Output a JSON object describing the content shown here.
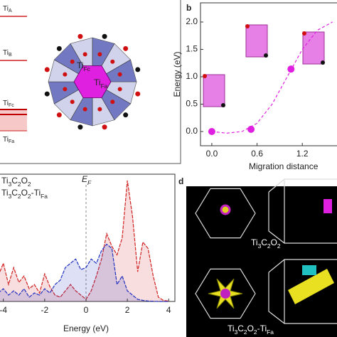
{
  "chart_data": [
    {
      "type": "scatter",
      "panel_label": "b",
      "ylabel": "Energy (eV)",
      "xlabel": "Migration distance",
      "x": [
        0,
        0.52,
        1.05
      ],
      "values": [
        0,
        0.04,
        1.14
      ],
      "color": "#e020e0",
      "curve": {
        "x": [
          0,
          0.2,
          0.4,
          0.6,
          0.8,
          1.0,
          1.2,
          1.4,
          1.6
        ],
        "values": [
          0,
          -0.03,
          0,
          0.15,
          0.5,
          1.0,
          1.5,
          1.85,
          2.0
        ],
        "color": "#e020e0"
      },
      "xlim": [
        -0.15,
        1.66
      ],
      "ylim": [
        -0.26,
        2.35
      ],
      "xticks": [
        {
          "value": 0,
          "label": "0.0"
        },
        {
          "value": 0.6,
          "label": "0.6"
        },
        {
          "value": 1.2,
          "label": "1.2"
        }
      ],
      "yticks": [
        {
          "value": 0,
          "label": "0.0"
        },
        {
          "value": 0.5,
          "label": "0.5"
        },
        {
          "value": 1,
          "label": "1.0"
        },
        {
          "value": 1.5,
          "label": "1.5"
        },
        {
          "value": 2,
          "label": "2.0"
        }
      ]
    },
    {
      "type": "line",
      "xlabel": "Energy (eV)",
      "annotation": [
        "E",
        "F"
      ],
      "x": [
        -4.25,
        -4,
        -3.75,
        -3.5,
        -3.25,
        -3,
        -2.75,
        -2.5,
        -2.25,
        -2,
        -1.75,
        -1.5,
        -1.25,
        -1,
        -0.75,
        -0.5,
        -0.25,
        0,
        0.25,
        0.5,
        0.75,
        1,
        1.25,
        1.5,
        1.75,
        2,
        2.25,
        2.5,
        2.75,
        3,
        3.25,
        3.5,
        3.75,
        4
      ],
      "series": [
        {
          "name": [
            "Ti",
            "3",
            "C",
            "2",
            "O",
            "2"
          ],
          "color": "#2030c0",
          "values": [
            0.4,
            0.6,
            0.3,
            0.5,
            0.3,
            0.6,
            0.2,
            0.4,
            0.3,
            0.6,
            0.4,
            0.8,
            1.0,
            1.6,
            1.8,
            2.0,
            1.5,
            1.6,
            2.0,
            1.8,
            2.4,
            2.7,
            2.5,
            0.8,
            1.2,
            0.5,
            0.3,
            0.1,
            0.05,
            0.02,
            0.01,
            0,
            0,
            0
          ]
        },
        {
          "name": [
            "Ti",
            "3",
            "C",
            "2",
            "O",
            "2",
            "-Ti",
            "Fa"
          ],
          "color": "#d02020",
          "values": [
            1.2,
            1.8,
            0.8,
            1.6,
            0.9,
            1.2,
            0.6,
            0.8,
            0.4,
            1.3,
            0.7,
            0.3,
            0.2,
            0.5,
            0.8,
            0.5,
            0.3,
            0.1,
            0.5,
            1.2,
            2.0,
            3.2,
            2.6,
            2.2,
            3.0,
            5.7,
            4.0,
            1.4,
            2.8,
            2.5,
            1.2,
            0.2,
            0.05,
            0.02
          ]
        }
      ],
      "xlim": [
        -4.3,
        4.3
      ],
      "ylim": [
        0,
        6
      ],
      "xticks": [
        -4,
        -2,
        0,
        2,
        4
      ]
    }
  ],
  "structure_panel": {
    "levels": [
      [
        "Ti",
        "A"
      ],
      [
        "Ti",
        "B"
      ],
      [
        "Ti",
        "Fc"
      ],
      [
        "Ti",
        "Fa"
      ]
    ],
    "site_labels": [
      [
        "Ti",
        "Fc"
      ],
      [
        "Ti",
        "Fa"
      ]
    ]
  },
  "fermi_panel": {
    "label": "d",
    "captions": [
      [
        "Ti",
        "3",
        "C",
        "2",
        "O",
        "2"
      ],
      [
        "Ti",
        "3",
        "C",
        "2",
        "O",
        "2",
        "-Ti",
        "Fa"
      ]
    ]
  }
}
